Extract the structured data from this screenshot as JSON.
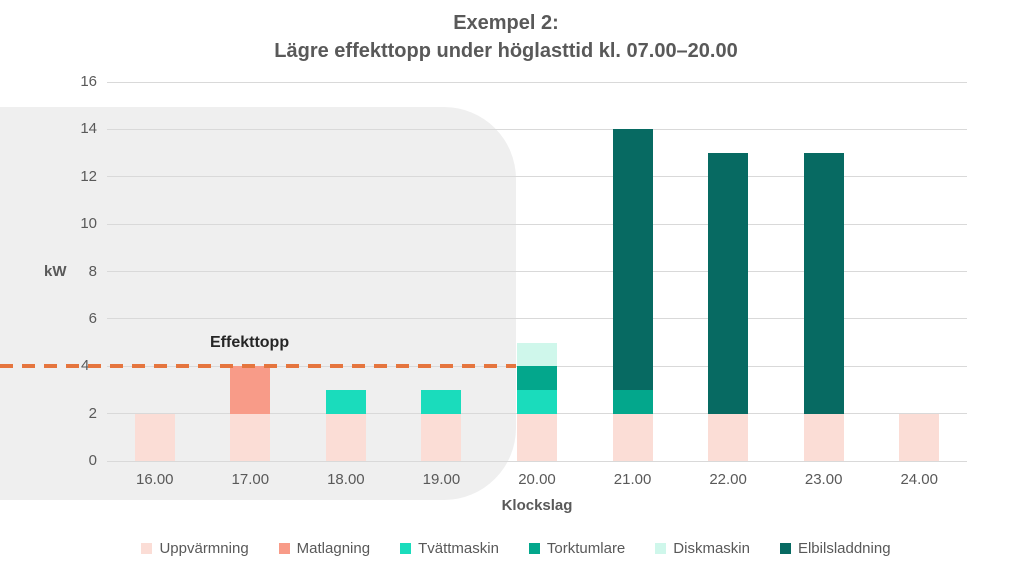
{
  "chart": {
    "title_line1": "Exempel 2:",
    "title_line2": "Lägre effekttopp under höglasttid kl. 07.00–20.00"
  },
  "chart_data": {
    "type": "bar",
    "stacked": true,
    "title": "Exempel 2: Lägre effekttopp under höglasttid kl. 07.00–20.00",
    "categories": [
      "16.00",
      "17.00",
      "18.00",
      "19.00",
      "20.00",
      "21.00",
      "22.00",
      "23.00",
      "24.00"
    ],
    "series": [
      {
        "name": "Uppvärmning",
        "color": "#FBDDD6",
        "values": [
          2,
          2,
          2,
          2,
          2,
          2,
          2,
          2,
          2
        ]
      },
      {
        "name": "Matlagning",
        "color": "#F89B88",
        "values": [
          0,
          2,
          0,
          0,
          0,
          0,
          0,
          0,
          0
        ]
      },
      {
        "name": "Tvättmaskin",
        "color": "#1ADCBC",
        "values": [
          0,
          0,
          1,
          1,
          1,
          0,
          0,
          0,
          0
        ]
      },
      {
        "name": "Torktumlare",
        "color": "#03A78C",
        "values": [
          0,
          0,
          0,
          0,
          1,
          1,
          0,
          0,
          0
        ]
      },
      {
        "name": "Diskmaskin",
        "color": "#CFF7EB",
        "values": [
          0,
          0,
          0,
          0,
          1,
          0,
          0,
          0,
          0
        ]
      },
      {
        "name": "Elbilsladdning",
        "color": "#076A62",
        "values": [
          0,
          0,
          0,
          0,
          0,
          11,
          11,
          11,
          0
        ]
      }
    ],
    "totals": [
      2,
      4,
      3,
      3,
      5,
      14,
      13,
      13,
      2
    ],
    "xlabel": "Klockslag",
    "ylabel": "kW",
    "ylim": [
      0,
      16
    ],
    "yticks": [
      0,
      2,
      4,
      6,
      8,
      10,
      12,
      14,
      16
    ],
    "grid": true,
    "legend_position": "bottom",
    "annotation": {
      "label": "Effekttopp",
      "value": 4,
      "line_color": "#E5753E",
      "line_style": "dashed"
    },
    "highlight_region": {
      "x_span": "16.00–20.00",
      "color": "#EFEFEF"
    }
  },
  "colors": {
    "title_text": "#595959",
    "axis_text": "#595959",
    "gridline": "#D9D9D9",
    "annotation_text": "#262626",
    "background": "#FFFFFF"
  }
}
